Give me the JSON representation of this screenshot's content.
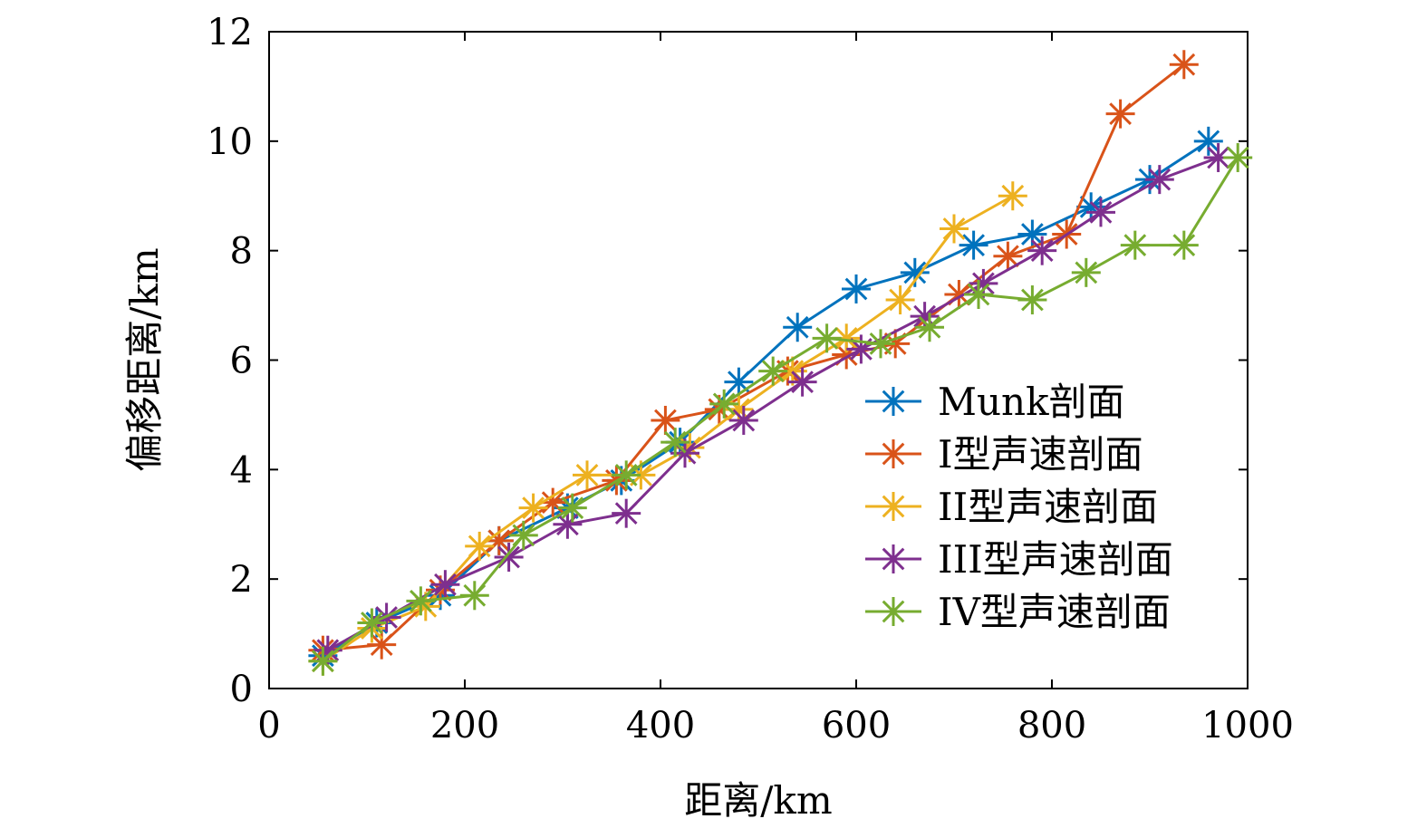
{
  "chart_data": {
    "type": "line",
    "title": "",
    "xlabel": "距离/km",
    "ylabel": "偏移距离/km",
    "xlim": [
      0,
      1000
    ],
    "ylim": [
      0,
      12
    ],
    "xticks": [
      0,
      200,
      400,
      600,
      800,
      1000
    ],
    "yticks": [
      0,
      2,
      4,
      6,
      8,
      10,
      12
    ],
    "grid": false,
    "legend_position": "lower-right",
    "marker": "asterisk",
    "series": [
      {
        "name": "Munk剖面",
        "color": "#0072BD",
        "x": [
          55,
          110,
          175,
          235,
          305,
          360,
          420,
          480,
          540,
          600,
          660,
          720,
          780,
          840,
          900,
          960
        ],
        "y": [
          0.6,
          1.2,
          1.7,
          2.7,
          3.3,
          3.8,
          4.5,
          5.6,
          6.6,
          7.3,
          7.6,
          8.1,
          8.3,
          8.8,
          9.3,
          10.0
        ]
      },
      {
        "name": "I型声速剖面",
        "color": "#D95319",
        "x": [
          55,
          115,
          175,
          235,
          290,
          355,
          405,
          460,
          530,
          590,
          640,
          705,
          755,
          815,
          870,
          935
        ],
        "y": [
          0.7,
          0.8,
          1.8,
          2.7,
          3.4,
          3.8,
          4.9,
          5.1,
          5.8,
          6.1,
          6.3,
          7.2,
          7.9,
          8.3,
          10.5,
          11.4
        ]
      },
      {
        "name": "II型声速剖面",
        "color": "#EDB120",
        "x": [
          55,
          105,
          160,
          215,
          270,
          325,
          380,
          430,
          480,
          535,
          590,
          645,
          700,
          760
        ],
        "y": [
          0.5,
          1.1,
          1.5,
          2.6,
          3.3,
          3.9,
          3.9,
          4.4,
          5.1,
          5.8,
          6.4,
          7.1,
          8.4,
          9.0
        ]
      },
      {
        "name": "III型声速剖面",
        "color": "#7E2F8E",
        "x": [
          60,
          120,
          180,
          245,
          305,
          365,
          425,
          485,
          545,
          605,
          670,
          730,
          790,
          850,
          910,
          970
        ],
        "y": [
          0.7,
          1.3,
          1.9,
          2.4,
          3.0,
          3.2,
          4.3,
          4.9,
          5.6,
          6.2,
          6.8,
          7.4,
          8.0,
          8.7,
          9.3,
          9.7
        ]
      },
      {
        "name": "IV型声速剖面",
        "color": "#77AC30",
        "x": [
          55,
          105,
          155,
          210,
          260,
          310,
          365,
          415,
          465,
          515,
          570,
          625,
          675,
          725,
          780,
          835,
          885,
          935,
          990
        ],
        "y": [
          0.5,
          1.2,
          1.6,
          1.7,
          2.8,
          3.3,
          3.9,
          4.5,
          5.2,
          5.8,
          6.4,
          6.3,
          6.6,
          7.2,
          7.1,
          7.6,
          8.1,
          8.1,
          9.7
        ]
      }
    ]
  }
}
